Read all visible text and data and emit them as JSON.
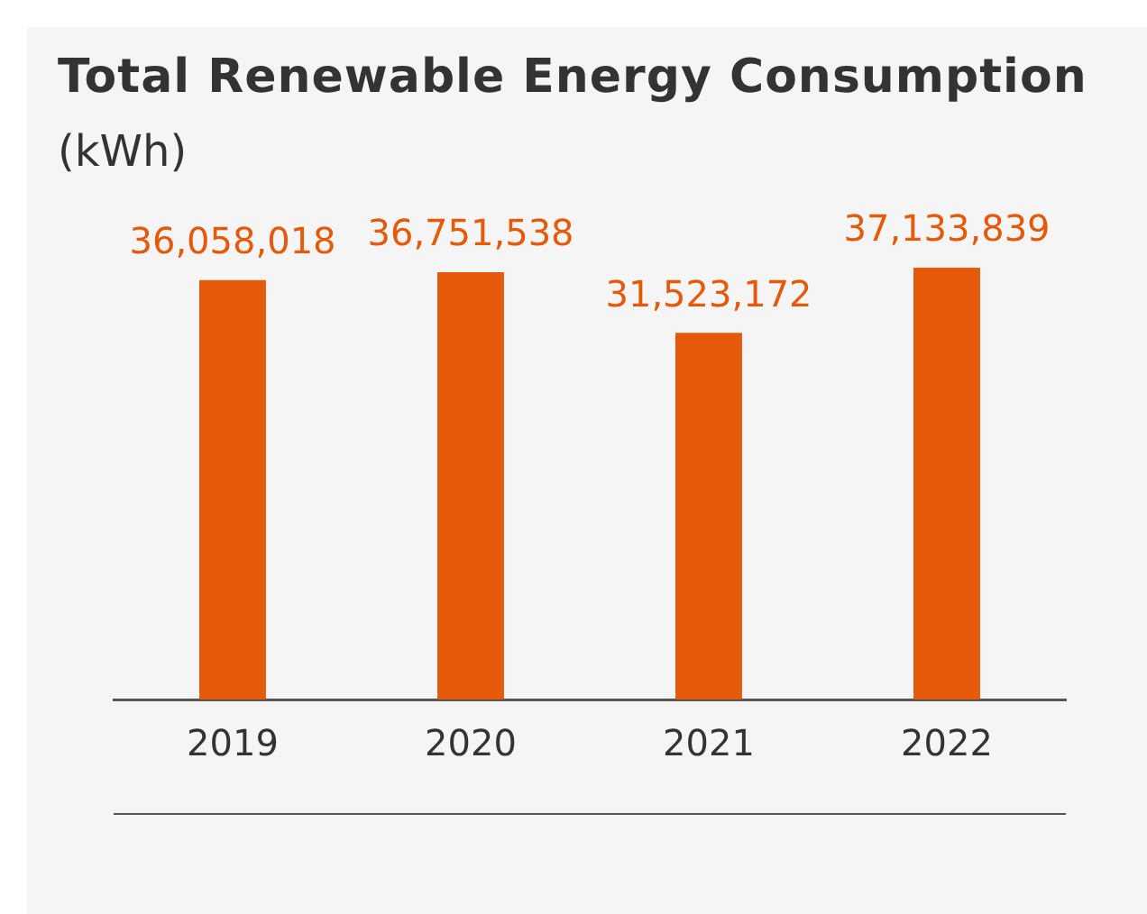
{
  "chart_data": {
    "type": "bar",
    "title": "Total Renewable Energy Consumption",
    "subtitle": "(kWh)",
    "categories": [
      "2019",
      "2020",
      "2021",
      "2022"
    ],
    "values": [
      36058018,
      36751538,
      31523172,
      37133839
    ],
    "value_labels": [
      "36,058,018",
      "36,751,538",
      "31,523,172",
      "37,133,839"
    ],
    "color": "#e5590b",
    "grid": false,
    "legend": false
  }
}
